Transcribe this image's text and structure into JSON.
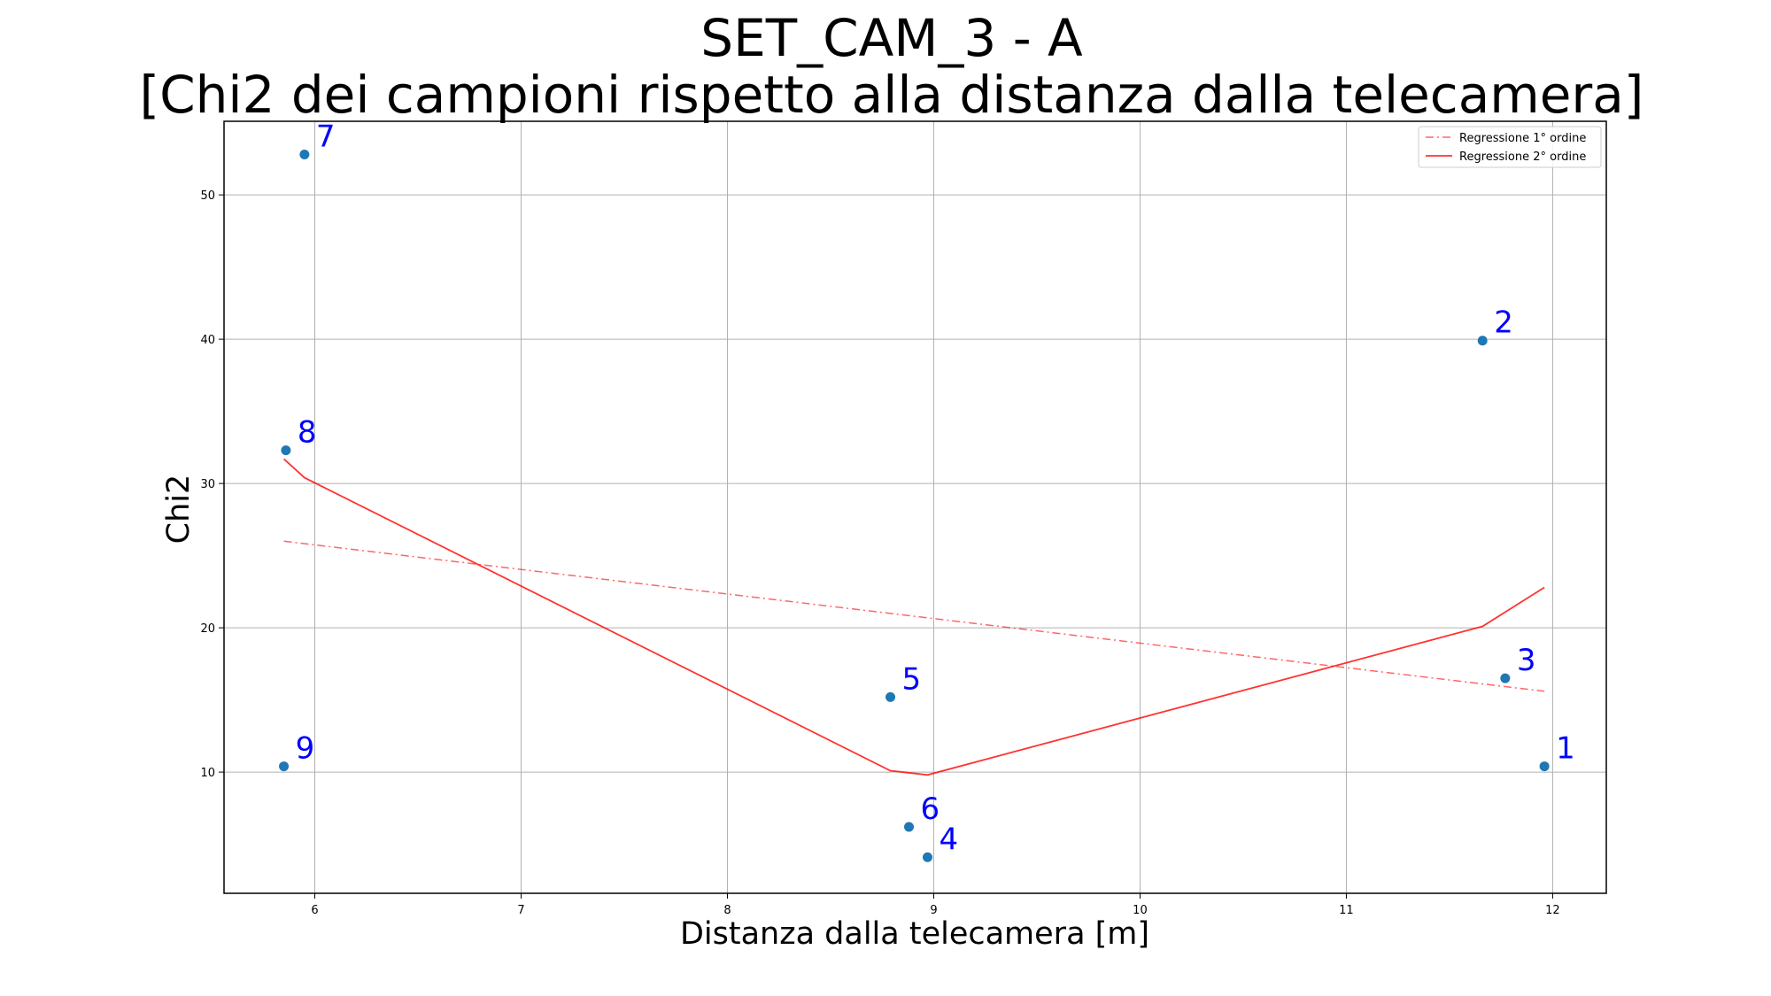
{
  "chart_data": {
    "type": "scatter",
    "title_line1": "SET_CAM_3 - A",
    "title_line2": "[Chi2 dei campioni rispetto alla distanza dalla telecamera]",
    "xlabel": "Distanza dalla telecamera [m]",
    "ylabel": "Chi2",
    "xlim": [
      5.56,
      12.26
    ],
    "ylim": [
      1.6,
      55.1
    ],
    "xticks": [
      6,
      7,
      8,
      9,
      10,
      11,
      12
    ],
    "yticks": [
      10,
      20,
      30,
      40,
      50
    ],
    "grid": true,
    "legend_position": "top-right",
    "legend": [
      {
        "label": "Regressione 1° ordine",
        "color": "#ff0000",
        "style": "dashdot"
      },
      {
        "label": "Regressione 2° ordine",
        "color": "#ff0000",
        "style": "solid"
      }
    ],
    "points": [
      {
        "label": "1",
        "x": 11.96,
        "y": 10.4
      },
      {
        "label": "2",
        "x": 11.66,
        "y": 39.9
      },
      {
        "label": "3",
        "x": 11.77,
        "y": 16.5
      },
      {
        "label": "4",
        "x": 8.97,
        "y": 4.1
      },
      {
        "label": "5",
        "x": 8.79,
        "y": 15.2
      },
      {
        "label": "6",
        "x": 8.88,
        "y": 6.2
      },
      {
        "label": "7",
        "x": 5.95,
        "y": 52.8
      },
      {
        "label": "8",
        "x": 5.86,
        "y": 32.3
      },
      {
        "label": "9",
        "x": 5.85,
        "y": 10.4
      }
    ],
    "point_color": "#1f77b4",
    "label_color": "#0000ff",
    "regression_1": {
      "color": "#ff0000",
      "x": [
        5.85,
        11.96
      ],
      "y": [
        26.0,
        15.6
      ]
    },
    "regression_2": {
      "color": "#ff0000",
      "x": [
        5.85,
        5.95,
        8.79,
        8.97,
        11.66,
        11.96
      ],
      "y": [
        31.7,
        30.4,
        10.1,
        9.8,
        20.1,
        22.8
      ]
    }
  }
}
